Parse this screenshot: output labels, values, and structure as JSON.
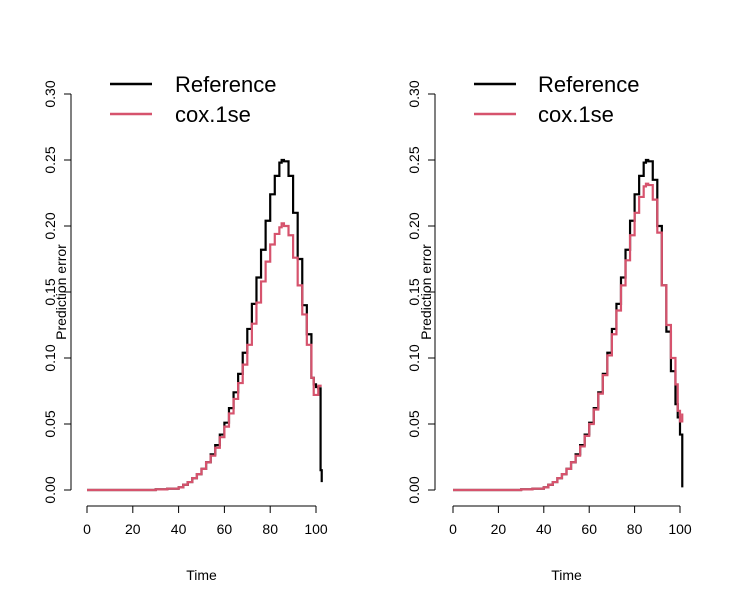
{
  "chart_data": [
    {
      "type": "line",
      "step": true,
      "xlabel": "Time",
      "ylabel": "Prediction error",
      "xlim": [
        0,
        102
      ],
      "ylim": [
        0,
        0.3
      ],
      "xticks": [
        0,
        20,
        40,
        60,
        80,
        100
      ],
      "yticks": [
        "0.00",
        "0.05",
        "0.10",
        "0.15",
        "0.20",
        "0.25",
        "0.30"
      ],
      "legend": {
        "placement": "top-left",
        "entries": [
          "Reference",
          "cox.1se"
        ]
      },
      "grid": false,
      "series": [
        {
          "name": "Reference",
          "color": "#000000",
          "x": [
            0,
            10,
            20,
            30,
            35,
            40,
            42,
            44,
            46,
            48,
            50,
            52,
            54,
            56,
            58,
            60,
            62,
            64,
            66,
            68,
            70,
            72,
            74,
            76,
            78,
            80,
            82,
            84,
            85,
            86,
            88,
            90,
            92,
            94,
            96,
            98,
            99,
            100,
            101,
            102,
            102.5
          ],
          "y": [
            0,
            0,
            0,
            0.0005,
            0.001,
            0.002,
            0.004,
            0.006,
            0.009,
            0.012,
            0.016,
            0.021,
            0.027,
            0.034,
            0.042,
            0.051,
            0.062,
            0.074,
            0.088,
            0.104,
            0.122,
            0.141,
            0.161,
            0.182,
            0.204,
            0.224,
            0.238,
            0.248,
            0.25,
            0.249,
            0.238,
            0.21,
            0.175,
            0.14,
            0.118,
            0.085,
            0.08,
            0.078,
            0.077,
            0.015,
            0.006
          ]
        },
        {
          "name": "cox.1se",
          "color": "#d6536d",
          "x": [
            0,
            10,
            20,
            30,
            35,
            40,
            42,
            44,
            46,
            48,
            50,
            52,
            54,
            56,
            58,
            60,
            62,
            64,
            66,
            68,
            70,
            72,
            74,
            76,
            78,
            80,
            82,
            84,
            85,
            86,
            88,
            90,
            92,
            94,
            96,
            98,
            99,
            100,
            101,
            102
          ],
          "y": [
            0,
            0,
            0,
            0.0005,
            0.001,
            0.002,
            0.004,
            0.006,
            0.009,
            0.012,
            0.016,
            0.021,
            0.026,
            0.032,
            0.04,
            0.048,
            0.058,
            0.069,
            0.081,
            0.095,
            0.11,
            0.126,
            0.142,
            0.158,
            0.173,
            0.186,
            0.194,
            0.199,
            0.202,
            0.2,
            0.193,
            0.176,
            0.155,
            0.133,
            0.11,
            0.085,
            0.072,
            0.072,
            0.079,
            0.078
          ]
        }
      ]
    },
    {
      "type": "line",
      "step": true,
      "xlabel": "Time",
      "ylabel": "Prediction error",
      "xlim": [
        0,
        102
      ],
      "ylim": [
        0,
        0.3
      ],
      "xticks": [
        0,
        20,
        40,
        60,
        80,
        100
      ],
      "yticks": [
        "0.00",
        "0.05",
        "0.10",
        "0.15",
        "0.20",
        "0.25",
        "0.30"
      ],
      "legend": {
        "placement": "top-left",
        "entries": [
          "Reference",
          "cox.1se"
        ]
      },
      "grid": false,
      "series": [
        {
          "name": "Reference",
          "color": "#000000",
          "x": [
            0,
            10,
            20,
            30,
            35,
            40,
            42,
            44,
            46,
            48,
            50,
            52,
            54,
            56,
            58,
            60,
            62,
            64,
            66,
            68,
            70,
            72,
            74,
            76,
            78,
            80,
            82,
            84,
            85,
            86,
            88,
            90,
            92,
            94,
            96,
            98,
            99,
            100,
            101
          ],
          "y": [
            0,
            0,
            0,
            0.0005,
            0.001,
            0.002,
            0.004,
            0.006,
            0.009,
            0.012,
            0.016,
            0.021,
            0.027,
            0.034,
            0.042,
            0.051,
            0.062,
            0.074,
            0.088,
            0.104,
            0.122,
            0.141,
            0.161,
            0.182,
            0.204,
            0.224,
            0.238,
            0.248,
            0.25,
            0.249,
            0.235,
            0.2,
            0.155,
            0.12,
            0.09,
            0.065,
            0.055,
            0.042,
            0.002
          ]
        },
        {
          "name": "cox.1se",
          "color": "#d6536d",
          "x": [
            0,
            10,
            20,
            30,
            35,
            40,
            42,
            44,
            46,
            48,
            50,
            52,
            54,
            56,
            58,
            60,
            62,
            64,
            66,
            68,
            70,
            72,
            74,
            76,
            78,
            80,
            82,
            84,
            85,
            86,
            88,
            90,
            92,
            94,
            96,
            98,
            99,
            100,
            101
          ],
          "y": [
            0,
            0,
            0,
            0.0005,
            0.001,
            0.002,
            0.004,
            0.006,
            0.009,
            0.012,
            0.016,
            0.021,
            0.026,
            0.033,
            0.041,
            0.05,
            0.061,
            0.073,
            0.087,
            0.102,
            0.118,
            0.136,
            0.155,
            0.174,
            0.193,
            0.21,
            0.222,
            0.23,
            0.232,
            0.231,
            0.22,
            0.195,
            0.155,
            0.125,
            0.1,
            0.08,
            0.06,
            0.052,
            0.058
          ]
        }
      ]
    }
  ]
}
